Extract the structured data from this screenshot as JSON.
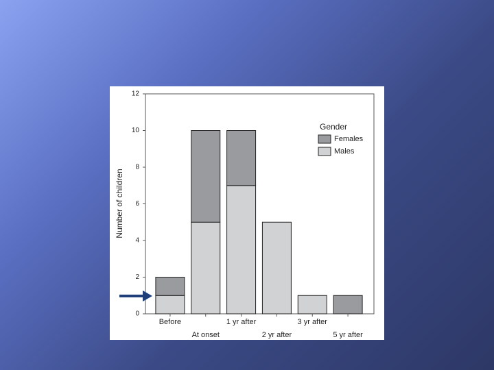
{
  "chart_data": {
    "type": "stacked_bar",
    "y_label": "Number of children",
    "categories": [
      "Before",
      "At onset",
      "1 yr after",
      "2 yr after",
      "3 yr after",
      "5 yr after"
    ],
    "series": [
      {
        "name": "Females",
        "color": "#9a9b9f",
        "values": [
          1,
          5,
          3,
          0,
          0,
          1
        ]
      },
      {
        "name": "Males",
        "color": "#d1d2d4",
        "values": [
          1,
          5,
          7,
          5,
          1,
          0
        ]
      }
    ],
    "legend_title": "Gender",
    "legend": "upper right",
    "ylim": [
      0,
      12
    ],
    "yticks": [
      0,
      2,
      4,
      6,
      8,
      10,
      12
    ]
  }
}
